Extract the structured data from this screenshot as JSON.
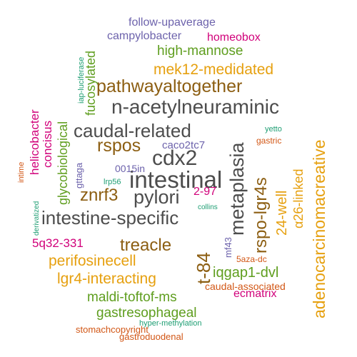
{
  "colors": {
    "dark-gray": "#4d4d4d",
    "brown": "#8c5e12",
    "orange": "#e6a00f",
    "green": "#5f9e1f",
    "magenta": "#d1007a",
    "purple": "#6d63ac",
    "teal": "#1e9e73",
    "rust": "#d25716"
  },
  "words": [
    {
      "text": "intestinal",
      "color": "dark-gray"
    },
    {
      "text": "n-acetylneuraminic",
      "color": "dark-gray"
    },
    {
      "text": "intestine-specific",
      "color": "dark-gray"
    },
    {
      "text": "caudal-related",
      "color": "dark-gray"
    },
    {
      "text": "metaplasia",
      "color": "dark-gray"
    },
    {
      "text": "cdx2",
      "color": "dark-gray"
    },
    {
      "text": "pylori",
      "color": "dark-gray"
    },
    {
      "text": "rspos",
      "color": "brown"
    },
    {
      "text": "pathwayaltogether",
      "color": "brown"
    },
    {
      "text": "treacle",
      "color": "brown"
    },
    {
      "text": "znrf3",
      "color": "brown"
    },
    {
      "text": "t-84",
      "color": "brown"
    },
    {
      "text": "rspo-lgr4s",
      "color": "brown"
    },
    {
      "text": "adenocarcinomacreative",
      "color": "orange"
    },
    {
      "text": "mek12-medidated",
      "color": "orange"
    },
    {
      "text": "perifosinecell",
      "color": "orange"
    },
    {
      "text": "lgr4-interacting",
      "color": "orange"
    },
    {
      "text": "24-well",
      "color": "orange"
    },
    {
      "text": "α26-linked",
      "color": "orange"
    },
    {
      "text": "high-mannose",
      "color": "green"
    },
    {
      "text": "fucosylated",
      "color": "green"
    },
    {
      "text": "glycobiological",
      "color": "green"
    },
    {
      "text": "iqgap1-dvl",
      "color": "green"
    },
    {
      "text": "maldi-toftof-ms",
      "color": "green"
    },
    {
      "text": "gastresophageal",
      "color": "green"
    },
    {
      "text": "homeobox",
      "color": "magenta"
    },
    {
      "text": "helicobacter",
      "color": "magenta"
    },
    {
      "text": "concisus",
      "color": "magenta"
    },
    {
      "text": "5q32-331",
      "color": "magenta"
    },
    {
      "text": "2-97",
      "color": "magenta"
    },
    {
      "text": "ecmatrix",
      "color": "magenta"
    },
    {
      "text": "follow-upaverage",
      "color": "purple"
    },
    {
      "text": "campylobacter",
      "color": "purple"
    },
    {
      "text": "caco2tc7",
      "color": "purple"
    },
    {
      "text": "0015in",
      "color": "purple"
    },
    {
      "text": "gttaga",
      "color": "purple"
    },
    {
      "text": "mf43",
      "color": "purple"
    },
    {
      "text": "iap-luciferase",
      "color": "teal"
    },
    {
      "text": "lrp56",
      "color": "teal"
    },
    {
      "text": "yetto",
      "color": "teal"
    },
    {
      "text": "collins",
      "color": "teal"
    },
    {
      "text": "derivatized",
      "color": "teal"
    },
    {
      "text": "hyper-methylation",
      "color": "teal"
    },
    {
      "text": "gastric",
      "color": "rust"
    },
    {
      "text": "intime",
      "color": "rust"
    },
    {
      "text": "5aza-dc",
      "color": "rust"
    },
    {
      "text": "caudal-associated",
      "color": "rust"
    },
    {
      "text": "stomachcopyright",
      "color": "rust"
    },
    {
      "text": "gastroduodenal",
      "color": "rust"
    }
  ]
}
